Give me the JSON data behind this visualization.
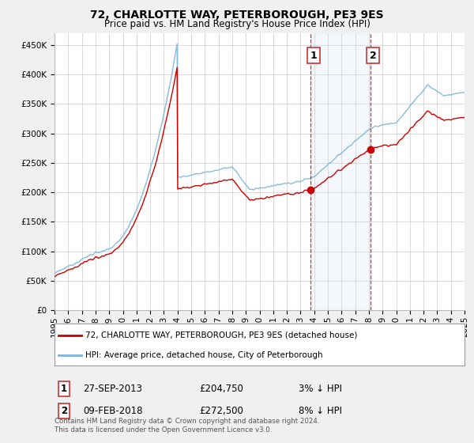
{
  "title": "72, CHARLOTTE WAY, PETERBOROUGH, PE3 9ES",
  "subtitle": "Price paid vs. HM Land Registry's House Price Index (HPI)",
  "ylim": [
    0,
    470000
  ],
  "yticks": [
    0,
    50000,
    100000,
    150000,
    200000,
    250000,
    300000,
    350000,
    400000,
    450000
  ],
  "ytick_labels": [
    "£0",
    "£50K",
    "£100K",
    "£150K",
    "£200K",
    "£250K",
    "£300K",
    "£350K",
    "£400K",
    "£450K"
  ],
  "hpi_color": "#7ab4d8",
  "price_color": "#cc0000",
  "background_color": "#f0f0f0",
  "plot_bg_color": "#ffffff",
  "grid_color": "#cccccc",
  "sale1_price": 204750,
  "sale1_hpi_diff": "3% ↓ HPI",
  "sale1_x": 2013.75,
  "sale1_date_label": "27-SEP-2013",
  "sale2_price": 272500,
  "sale2_hpi_diff": "8% ↓ HPI",
  "sale2_x": 2018.1,
  "sale2_date_label": "09-FEB-2018",
  "shade_xmin": 2013.75,
  "shade_xmax": 2018.1,
  "legend_line1": "72, CHARLOTTE WAY, PETERBOROUGH, PE3 9ES (detached house)",
  "legend_line2": "HPI: Average price, detached house, City of Peterborough",
  "footnote": "Contains HM Land Registry data © Crown copyright and database right 2024.\nThis data is licensed under the Open Government Licence v3.0.",
  "title_fontsize": 10,
  "subtitle_fontsize": 8.5,
  "tick_fontsize": 7.5,
  "xmin": 1995,
  "xmax": 2025
}
